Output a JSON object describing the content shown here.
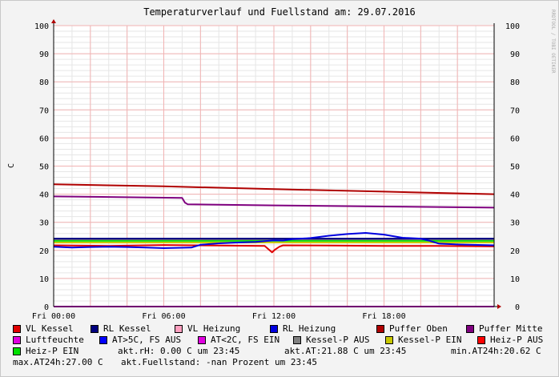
{
  "title": "Temperaturverlauf und Fuellstand am: 29.07.2016",
  "watermark": "RRDTOOL / TOBI OETIKER",
  "chart_data": {
    "type": "line",
    "ylabel": "C",
    "ylim": [
      0,
      100
    ],
    "yticks": [
      0,
      10,
      20,
      30,
      40,
      50,
      60,
      70,
      80,
      90,
      100
    ],
    "xlim": [
      0,
      24
    ],
    "xticks": [
      {
        "value": 0,
        "label": "Fri 00:00"
      },
      {
        "value": 6,
        "label": "Fri 06:00"
      },
      {
        "value": 12,
        "label": "Fri 12:00"
      },
      {
        "value": 18,
        "label": "Fri 18:00"
      }
    ],
    "grid": true,
    "series": [
      {
        "name": "Puffer Oben",
        "color": "#b00000",
        "x": [
          0,
          6,
          12,
          18,
          24
        ],
        "values": [
          43.5,
          42.8,
          41.8,
          40.9,
          40.0
        ]
      },
      {
        "name": "Puffer Mitte",
        "color": "#7f007f",
        "x": [
          0,
          3,
          7.0,
          7.15,
          7.3,
          12,
          18,
          24
        ],
        "values": [
          39.2,
          39.0,
          38.7,
          37.0,
          36.4,
          36.0,
          35.6,
          35.2
        ]
      },
      {
        "name": "Kessel-P EIN",
        "color": "#c8c800",
        "x": [
          0,
          24
        ],
        "values": [
          22.8,
          22.8
        ]
      },
      {
        "name": "Heiz-P EIN",
        "color": "#00e000",
        "x": [
          0,
          24
        ],
        "values": [
          23.4,
          23.4
        ]
      },
      {
        "name": "Kessel-P AUS",
        "color": "#7f7f7f",
        "x": [
          0,
          24
        ],
        "values": [
          23.9,
          23.9
        ]
      },
      {
        "name": "RL Kessel",
        "color": "#00007f",
        "x": [
          0,
          24
        ],
        "values": [
          24.2,
          24.2
        ]
      },
      {
        "name": "VL Kessel",
        "color": "#e00000",
        "x": [
          0,
          3,
          6,
          9,
          11.5,
          11.9,
          12.05,
          12.3,
          12.5,
          15,
          18,
          21,
          24
        ],
        "values": [
          21.8,
          21.6,
          21.9,
          21.7,
          21.6,
          19.3,
          20.2,
          21.3,
          21.8,
          21.7,
          21.6,
          21.6,
          21.4
        ]
      },
      {
        "name": "RL Heizung",
        "color": "#0000e0",
        "x": [
          0,
          1,
          2,
          3,
          4,
          5,
          6,
          7.5,
          8,
          9,
          10,
          11,
          12,
          12.5,
          13,
          14,
          15,
          16,
          17,
          18,
          19,
          20,
          20.5,
          21,
          22,
          24
        ],
        "values": [
          21.3,
          21.0,
          21.2,
          21.3,
          21.2,
          21.0,
          20.8,
          21.0,
          22.0,
          22.5,
          22.8,
          23.0,
          23.6,
          23.5,
          24.0,
          24.4,
          25.2,
          25.8,
          26.2,
          25.6,
          24.5,
          24.2,
          23.4,
          22.4,
          22.1,
          21.8
        ]
      },
      {
        "name": "Luftfeuchte",
        "color": "#e000e0",
        "x": [
          0,
          24
        ],
        "values": [
          0.0,
          0.0
        ]
      }
    ]
  },
  "legend": [
    {
      "name": "VL Kessel",
      "color": "#e00000"
    },
    {
      "name": "RL Kessel",
      "color": "#00007f"
    },
    {
      "name": "VL Heizung",
      "color": "#ff9fbf"
    },
    {
      "name": "RL Heizung",
      "color": "#0000e0"
    },
    {
      "name": "Puffer Oben",
      "color": "#b00000"
    },
    {
      "name": "Puffer Mitte",
      "color": "#7f007f"
    },
    {
      "name": "Luftfeuchte",
      "color": "#e000e0"
    },
    {
      "name": "AT>5C, FS AUS",
      "color": "#0000ff"
    },
    {
      "name": "AT<2C, FS EIN",
      "color": "#e000e0"
    },
    {
      "name": "Kessel-P AUS",
      "color": "#7f7f7f"
    },
    {
      "name": "Kessel-P EIN",
      "color": "#c8c800"
    },
    {
      "name": "Heiz-P AUS",
      "color": "#ff0000"
    },
    {
      "name": "Heiz-P EIN",
      "color": "#00e000"
    }
  ],
  "info": {
    "rh": "akt.rH: 0.00 C um 23:45",
    "at": "akt.AT:21.88 C um 23:45",
    "min": "min.AT24h:20.62 C",
    "max": "max.AT24h:27.00 C",
    "fuellstand": "akt.Fuellstand: -nan Prozent um 23:45"
  }
}
